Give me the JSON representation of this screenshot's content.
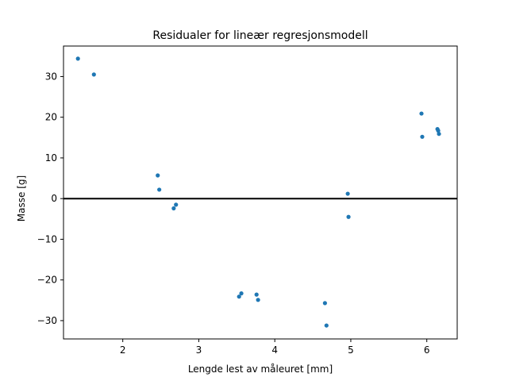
{
  "chart_data": {
    "type": "scatter",
    "title": "Residualer for lineær regresjonsmodell",
    "xlabel": "Lengde lest av måleuret [mm]",
    "ylabel": "Masse [g]",
    "xlim": [
      1.22,
      6.4
    ],
    "ylim": [
      -34.5,
      37.5
    ],
    "xticks": [
      2,
      3,
      4,
      5,
      6
    ],
    "yticks": [
      -30,
      -20,
      -10,
      0,
      10,
      20,
      30
    ],
    "xtick_labels": [
      "2",
      "3",
      "4",
      "5",
      "6"
    ],
    "ytick_labels": [
      "−30",
      "−20",
      "−10",
      "0",
      "10",
      "20",
      "30"
    ],
    "reference_line_y": 0,
    "grid": false,
    "legend": "none",
    "point_color": "#1f77b4",
    "series": [
      {
        "points": [
          {
            "x": 1.41,
            "y": 34.4
          },
          {
            "x": 1.62,
            "y": 30.5
          },
          {
            "x": 2.46,
            "y": 5.7
          },
          {
            "x": 2.48,
            "y": 2.2
          },
          {
            "x": 2.67,
            "y": -2.4
          },
          {
            "x": 2.7,
            "y": -1.5
          },
          {
            "x": 3.53,
            "y": -24.1
          },
          {
            "x": 3.56,
            "y": -23.3
          },
          {
            "x": 3.76,
            "y": -23.6
          },
          {
            "x": 3.78,
            "y": -24.9
          },
          {
            "x": 4.66,
            "y": -25.7
          },
          {
            "x": 4.68,
            "y": -31.2
          },
          {
            "x": 4.96,
            "y": 1.2
          },
          {
            "x": 4.97,
            "y": -4.5
          },
          {
            "x": 5.93,
            "y": 20.9
          },
          {
            "x": 5.94,
            "y": 15.2
          },
          {
            "x": 6.14,
            "y": 17.1
          },
          {
            "x": 6.15,
            "y": 16.7
          },
          {
            "x": 6.16,
            "y": 15.9
          }
        ]
      }
    ]
  }
}
